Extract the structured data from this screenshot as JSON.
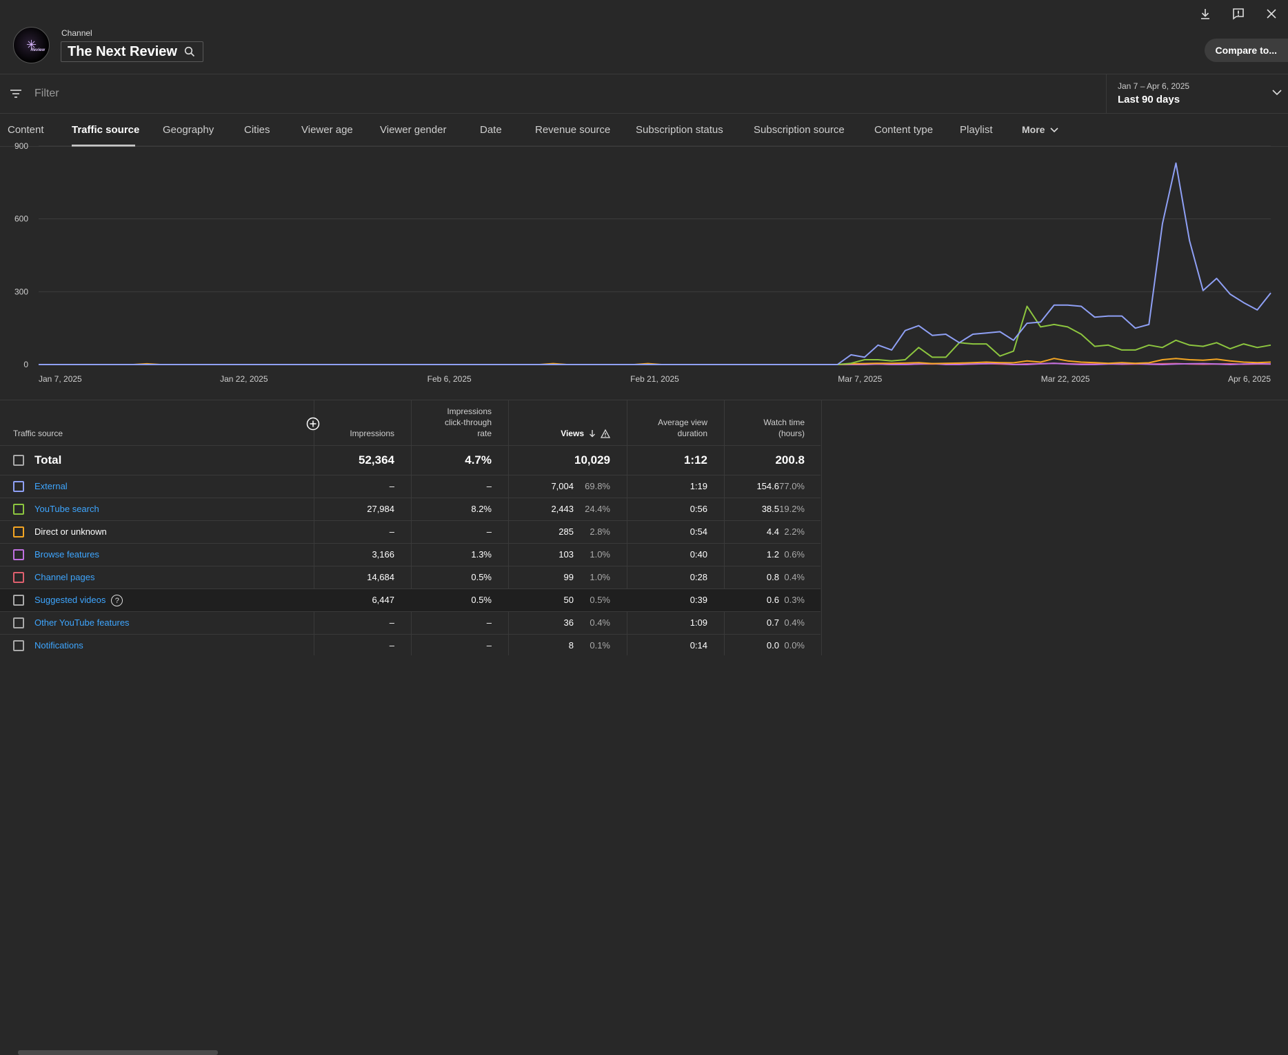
{
  "channel": {
    "label": "Channel",
    "name": "The Next Review",
    "avatar_text": "Review"
  },
  "toolbar": {
    "compare_label": "Compare to..."
  },
  "filter": {
    "placeholder": "Filter"
  },
  "date": {
    "range": "Jan 7 – Apr 6, 2025",
    "label": "Last 90 days"
  },
  "tabs": [
    "Content",
    "Traffic source",
    "Geography",
    "Cities",
    "Viewer age",
    "Viewer gender",
    "Date",
    "Revenue source",
    "Subscription status",
    "Subscription source",
    "Content type",
    "Playlist",
    "More"
  ],
  "active_tab": "Traffic source",
  "chart_data": {
    "type": "line",
    "y_ticks": [
      "0",
      "300",
      "600",
      "900"
    ],
    "ylim": [
      0,
      900
    ],
    "x_tick_labels": [
      "Jan 7, 2025",
      "Jan 22, 2025",
      "Feb 6, 2025",
      "Feb 21, 2025",
      "Mar 7, 2025",
      "Mar 22, 2025",
      "Apr 6, 2025"
    ],
    "grid": true,
    "series": [
      {
        "color": "#8fa0f5",
        "values": [
          0,
          0,
          0,
          0,
          0,
          0,
          0,
          0,
          0,
          0,
          0,
          0,
          0,
          0,
          0,
          0,
          0,
          0,
          0,
          0,
          0,
          0,
          0,
          0,
          0,
          0,
          0,
          0,
          0,
          0,
          0,
          0,
          0,
          0,
          0,
          0,
          0,
          0,
          0,
          0,
          0,
          0,
          0,
          0,
          0,
          0,
          0,
          0,
          0,
          0,
          0,
          0,
          0,
          0,
          0,
          0,
          0,
          0,
          0,
          0,
          40,
          30,
          80,
          60,
          140,
          160,
          120,
          125,
          90,
          125,
          130,
          135,
          100,
          170,
          175,
          245,
          245,
          240,
          195,
          200,
          200,
          150,
          165,
          580,
          830,
          510,
          305,
          355,
          290,
          255,
          225,
          295
        ]
      },
      {
        "color": "#8dc63f",
        "values": [
          0,
          0,
          0,
          0,
          0,
          0,
          0,
          0,
          0,
          0,
          0,
          0,
          0,
          0,
          0,
          0,
          0,
          0,
          0,
          0,
          0,
          0,
          0,
          0,
          0,
          0,
          0,
          0,
          0,
          0,
          0,
          0,
          0,
          0,
          0,
          0,
          0,
          0,
          0,
          0,
          0,
          0,
          0,
          0,
          0,
          0,
          0,
          0,
          0,
          0,
          0,
          0,
          0,
          0,
          0,
          0,
          0,
          0,
          0,
          0,
          5,
          20,
          20,
          15,
          20,
          70,
          30,
          30,
          90,
          85,
          85,
          35,
          55,
          240,
          155,
          165,
          155,
          125,
          75,
          80,
          60,
          60,
          80,
          70,
          100,
          80,
          75,
          90,
          65,
          85,
          70,
          80
        ]
      },
      {
        "color": "#f5a623",
        "values": [
          0,
          0,
          0,
          0,
          0,
          0,
          0,
          0,
          3,
          0,
          0,
          0,
          0,
          0,
          0,
          0,
          0,
          0,
          0,
          0,
          0,
          0,
          0,
          0,
          0,
          0,
          0,
          0,
          0,
          0,
          0,
          0,
          0,
          0,
          0,
          0,
          0,
          0,
          4,
          0,
          0,
          0,
          0,
          0,
          0,
          4,
          0,
          0,
          0,
          0,
          0,
          0,
          0,
          0,
          0,
          0,
          0,
          0,
          0,
          0,
          3,
          4,
          5,
          5,
          6,
          8,
          4,
          5,
          6,
          8,
          10,
          8,
          7,
          15,
          10,
          25,
          15,
          10,
          8,
          5,
          8,
          5,
          7,
          20,
          25,
          20,
          18,
          22,
          15,
          10,
          8,
          10
        ]
      },
      {
        "color": "#c070e0",
        "values": [
          0,
          0,
          0,
          0,
          0,
          0,
          0,
          0,
          0,
          0,
          0,
          0,
          0,
          0,
          0,
          0,
          0,
          0,
          0,
          0,
          0,
          0,
          0,
          0,
          0,
          0,
          0,
          0,
          0,
          0,
          0,
          0,
          0,
          0,
          0,
          0,
          0,
          0,
          0,
          0,
          0,
          0,
          0,
          0,
          0,
          0,
          0,
          0,
          0,
          0,
          0,
          0,
          0,
          0,
          0,
          0,
          0,
          0,
          0,
          0,
          0,
          0,
          2,
          0,
          0,
          2,
          4,
          0,
          0,
          2,
          3,
          5,
          0,
          0,
          3,
          5,
          2,
          0,
          0,
          2,
          2,
          4,
          1,
          0,
          2,
          3,
          4,
          2,
          0,
          2,
          3,
          2
        ]
      },
      {
        "color": "#e0606e",
        "values": [
          0,
          0,
          0,
          0,
          0,
          0,
          0,
          0,
          0,
          0,
          0,
          0,
          0,
          0,
          0,
          0,
          0,
          0,
          0,
          0,
          0,
          0,
          0,
          0,
          0,
          0,
          0,
          0,
          0,
          0,
          0,
          0,
          0,
          0,
          0,
          0,
          0,
          0,
          0,
          0,
          0,
          0,
          0,
          0,
          0,
          0,
          0,
          0,
          0,
          0,
          0,
          0,
          0,
          0,
          0,
          0,
          0,
          0,
          0,
          0,
          0,
          2,
          2,
          0,
          0,
          2,
          2,
          3,
          2,
          2,
          4,
          2,
          0,
          3,
          3,
          5,
          3,
          2,
          2,
          4,
          1,
          2,
          2,
          3,
          4,
          2,
          1,
          2,
          3,
          1,
          2,
          2
        ]
      }
    ]
  },
  "table": {
    "headers": {
      "source": "Traffic source",
      "impressions": "Impressions",
      "ctr_1": "Impressions",
      "ctr_2": "click-through",
      "ctr_3": "rate",
      "views": "Views",
      "avd_1": "Average view",
      "avd_2": "duration",
      "wt_1": "Watch time",
      "wt_2": "(hours)"
    },
    "total": {
      "label": "Total",
      "impressions": "52,364",
      "ctr": "4.7%",
      "views": "10,029",
      "avd": "1:12",
      "watch": "200.8"
    },
    "rows": [
      {
        "label": "External",
        "color": "#8fa0f5",
        "impressions": "–",
        "ctr": "–",
        "views": "7,004",
        "views_pct": "69.8%",
        "avd": "1:19",
        "watch": "154.6",
        "watch_pct": "77.0%"
      },
      {
        "label": "YouTube search",
        "color": "#8dc63f",
        "impressions": "27,984",
        "ctr": "8.2%",
        "views": "2,443",
        "views_pct": "24.4%",
        "avd": "0:56",
        "watch": "38.5",
        "watch_pct": "19.2%"
      },
      {
        "label": "Direct or unknown",
        "color": "#f5a623",
        "impressions": "–",
        "ctr": "–",
        "views": "285",
        "views_pct": "2.8%",
        "avd": "0:54",
        "watch": "4.4",
        "watch_pct": "2.2%"
      },
      {
        "label": "Browse features",
        "color": "#c070e0",
        "impressions": "3,166",
        "ctr": "1.3%",
        "views": "103",
        "views_pct": "1.0%",
        "avd": "0:40",
        "watch": "1.2",
        "watch_pct": "0.6%"
      },
      {
        "label": "Channel pages",
        "color": "#e0606e",
        "impressions": "14,684",
        "ctr": "0.5%",
        "views": "99",
        "views_pct": "1.0%",
        "avd": "0:28",
        "watch": "0.8",
        "watch_pct": "0.4%"
      },
      {
        "label": "Suggested videos",
        "color": "#aaaaaa",
        "impressions": "6,447",
        "ctr": "0.5%",
        "views": "50",
        "views_pct": "0.5%",
        "avd": "0:39",
        "watch": "0.6",
        "watch_pct": "0.3%"
      },
      {
        "label": "Other YouTube features",
        "color": "#aaaaaa",
        "impressions": "–",
        "ctr": "–",
        "views": "36",
        "views_pct": "0.4%",
        "avd": "1:09",
        "watch": "0.7",
        "watch_pct": "0.4%"
      },
      {
        "label": "Notifications",
        "color": "#aaaaaa",
        "impressions": "–",
        "ctr": "–",
        "views": "8",
        "views_pct": "0.1%",
        "avd": "0:14",
        "watch": "0.0",
        "watch_pct": "0.0%"
      }
    ]
  }
}
